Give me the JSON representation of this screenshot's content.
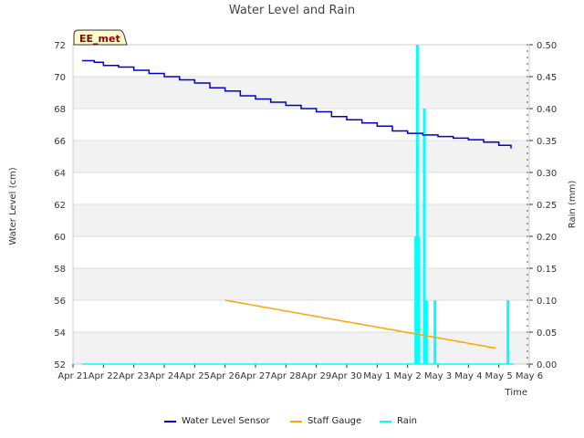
{
  "chart_data": {
    "type": "line",
    "title": "Water Level and Rain",
    "badge": "EE_met",
    "xlabel": "Time",
    "ylabel": "Water Level (cm)",
    "y2label": "Rain (mm)",
    "x_range": [
      0,
      15
    ],
    "ylim": [
      52,
      72
    ],
    "y2lim": [
      0,
      0.5
    ],
    "x_tick_labels": [
      "Apr 21",
      "Apr 22",
      "Apr 23",
      "Apr 24",
      "Apr 25",
      "Apr 26",
      "Apr 27",
      "Apr 28",
      "Apr 29",
      "Apr 30",
      "May 1",
      "May 2",
      "May 3",
      "May 4",
      "May 5",
      "May 6"
    ],
    "y_ticks": [
      52,
      54,
      56,
      58,
      60,
      62,
      64,
      66,
      68,
      70,
      72
    ],
    "y2_ticks": [
      "0.00",
      "0.05",
      "0.10",
      "0.15",
      "0.20",
      "0.25",
      "0.30",
      "0.35",
      "0.40",
      "0.45",
      "0.50"
    ],
    "series": [
      {
        "name": "Water Level Sensor",
        "color": "#0000cd",
        "axis": "left",
        "x": [
          0.3,
          0.7,
          1,
          1.5,
          2,
          2.5,
          3,
          3.5,
          4,
          4.5,
          5,
          5.5,
          6,
          6.5,
          7,
          7.5,
          8,
          8.5,
          9,
          9.5,
          10,
          10.5,
          11,
          11.5,
          12,
          12.5,
          13,
          13.5,
          14,
          14.4
        ],
        "y": [
          71.0,
          70.9,
          70.7,
          70.6,
          70.4,
          70.2,
          70.0,
          69.8,
          69.6,
          69.3,
          69.1,
          68.8,
          68.6,
          68.4,
          68.2,
          68.0,
          67.8,
          67.5,
          67.3,
          67.1,
          66.9,
          66.6,
          66.45,
          66.35,
          66.25,
          66.15,
          66.05,
          65.9,
          65.7,
          65.5
        ]
      },
      {
        "name": "Staff Gauge",
        "color": "#ffa500",
        "axis": "left",
        "x": [
          5.0,
          13.9
        ],
        "y": [
          56.0,
          53.0
        ]
      },
      {
        "name": "Rain",
        "color": "#00ffff",
        "axis": "right",
        "type": "bars",
        "x": [
          11.27,
          11.32,
          11.37,
          11.55,
          11.62,
          11.9,
          14.3
        ],
        "values": [
          0.2,
          0.5,
          0.2,
          0.4,
          0.1,
          0.1,
          0.1
        ]
      }
    ],
    "legend": [
      "Water Level Sensor",
      "Staff Gauge",
      "Rain"
    ],
    "legend_position": "bottom",
    "grid": true
  }
}
